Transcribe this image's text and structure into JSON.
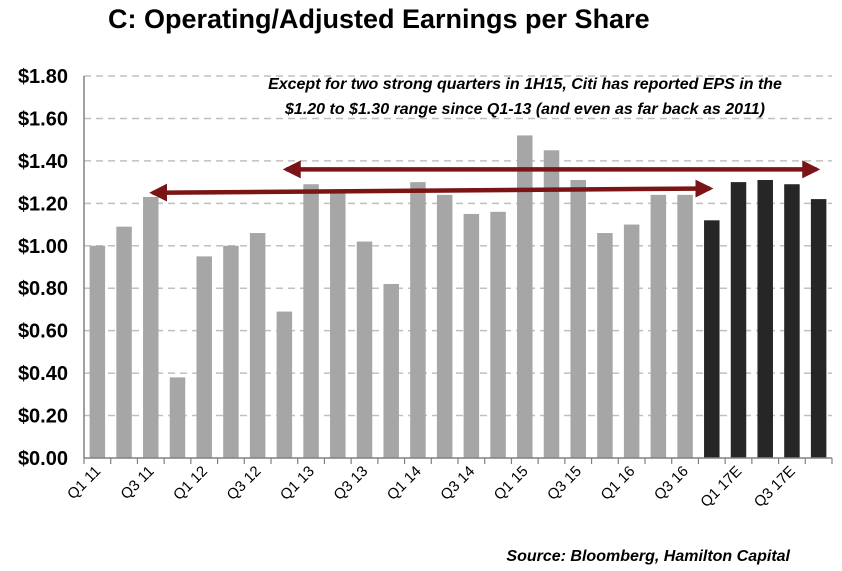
{
  "chart_data": {
    "type": "bar",
    "title": "C: Operating/Adjusted Earnings per Share",
    "annotation": [
      "Except for two strong quarters in 1H15, Citi has reported EPS in the",
      "$1.20 to $1.30 range since Q1-13 (and even as far back as 2011)"
    ],
    "source": "Source: Bloomberg, Hamilton Capital",
    "categories": [
      "Q1 11",
      "Q2 11",
      "Q3 11",
      "Q4 11",
      "Q1 12",
      "Q2 12",
      "Q3 12",
      "Q4 12",
      "Q1 13",
      "Q2 13",
      "Q3 13",
      "Q4 13",
      "Q1 14",
      "Q2 14",
      "Q3 14",
      "Q4 14",
      "Q1 15",
      "Q2 15",
      "Q3 15",
      "Q4 15",
      "Q1 16",
      "Q2 16",
      "Q3 16",
      "Q4 16",
      "Q1 17E",
      "Q2 17E",
      "Q3 17E",
      "Q4 17E"
    ],
    "shown_x_labels": [
      "Q1 11",
      "Q3 11",
      "Q1 12",
      "Q3 12",
      "Q1 13",
      "Q3 13",
      "Q1 14",
      "Q3 14",
      "Q1 15",
      "Q3 15",
      "Q1 16",
      "Q3 16",
      "Q1 17E",
      "Q3 17E"
    ],
    "values": [
      1.0,
      1.09,
      1.23,
      0.38,
      0.95,
      1.0,
      1.06,
      0.69,
      1.29,
      1.26,
      1.02,
      0.82,
      1.3,
      1.24,
      1.15,
      1.16,
      1.52,
      1.45,
      1.31,
      1.06,
      1.1,
      1.24,
      1.24,
      1.12,
      1.3,
      1.31,
      1.29,
      1.22
    ],
    "estimate_from_index": 23,
    "colors": {
      "actual": "#a6a6a6",
      "estimate": "#262626",
      "arrow": "#7b1414",
      "grid": "#c0c0c0"
    },
    "yticks": [
      "$0.00",
      "$0.20",
      "$0.40",
      "$0.60",
      "$0.80",
      "$1.00",
      "$1.20",
      "$1.40",
      "$1.60",
      "$1.80"
    ],
    "ylim": [
      0,
      1.8
    ],
    "grid": true,
    "arrows": [
      {
        "from_index": 2,
        "to_index": 23,
        "y_start": 1.25,
        "y_end": 1.27
      },
      {
        "from_index": 7,
        "to_index": 27,
        "y_start": 1.36,
        "y_end": 1.36
      }
    ]
  }
}
